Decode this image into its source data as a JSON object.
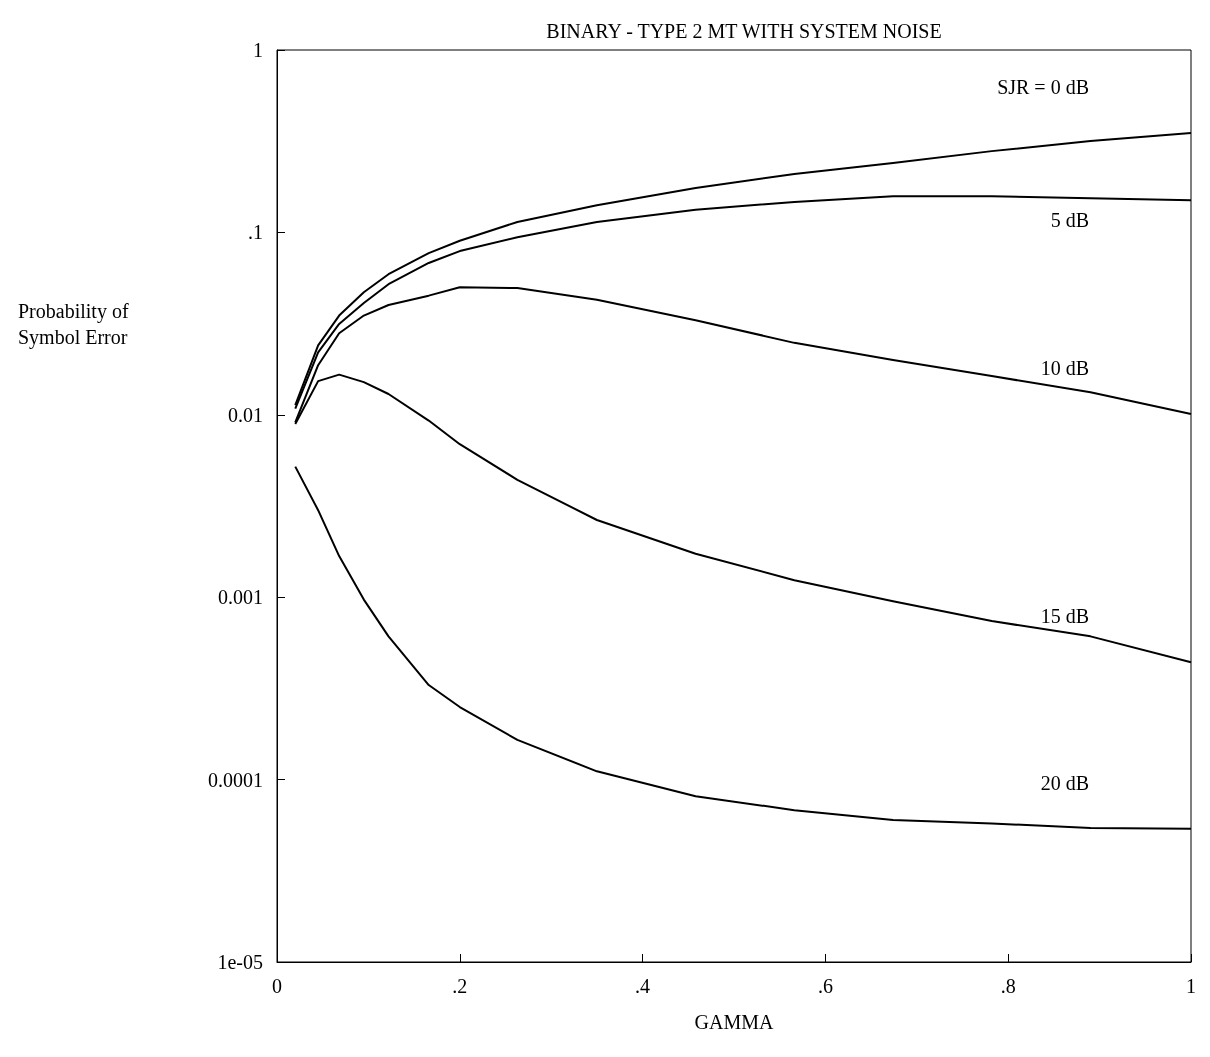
{
  "chart_data": {
    "type": "line",
    "title": "BINARY - TYPE 2 MT WITH SYSTEM NOISE",
    "xlabel": "GAMMA",
    "ylabel": "Probability of Symbol Error",
    "log": "y",
    "grid": false,
    "legend": false,
    "marker": "none",
    "line_style": "solid",
    "xlim": [
      0,
      1
    ],
    "xticks": [
      0,
      {
        "value": 0.2,
        "label": ".2"
      },
      {
        "value": 0.4,
        "label": ".4"
      },
      {
        "value": 0.6,
        "label": ".6"
      },
      {
        "value": 0.8,
        "label": ".8"
      },
      1
    ],
    "ylim": [
      1e-05,
      1
    ],
    "yticks": [
      {
        "value": 1e-05,
        "label": "1e-05"
      },
      0.0001,
      0.001,
      0.01,
      {
        "value": 0.1,
        "label": ".1"
      },
      1
    ],
    "x": [
      0.02,
      0.045,
      0.068,
      0.095,
      0.122,
      0.166,
      0.2,
      0.263,
      0.35,
      0.458,
      0.566,
      0.674,
      0.782,
      0.89,
      1
    ],
    "series": [
      {
        "name": "SJR = 0 dB",
        "color": "#000000",
        "values": [
          0.0113,
          0.024,
          0.035,
          0.047,
          0.059,
          0.077,
          0.09,
          0.114,
          0.141,
          0.175,
          0.209,
          0.24,
          0.279,
          0.317,
          0.351
        ]
      },
      {
        "name": "5 dB",
        "color": "#000000",
        "values": [
          0.0108,
          0.022,
          0.0315,
          0.041,
          0.052,
          0.068,
          0.079,
          0.094,
          0.114,
          0.133,
          0.147,
          0.158,
          0.158,
          0.154,
          0.15
        ]
      },
      {
        "name": "10 dB",
        "color": "#000000",
        "values": [
          0.0091,
          0.0187,
          0.028,
          0.035,
          0.04,
          0.045,
          0.05,
          0.0495,
          0.0427,
          0.033,
          0.0248,
          0.02,
          0.0163,
          0.0133,
          0.0101
        ]
      },
      {
        "name": "15 dB",
        "color": "#000000",
        "values": [
          0.0089,
          0.0153,
          0.0166,
          0.0151,
          0.013,
          0.0093,
          0.0069,
          0.0044,
          0.00265,
          0.00173,
          0.00124,
          0.00095,
          0.00074,
          0.00061,
          0.00044
        ]
      },
      {
        "name": "20 dB",
        "color": "#000000",
        "values": [
          0.0052,
          0.003,
          0.00168,
          0.00097,
          0.00061,
          0.00033,
          0.00025,
          0.000165,
          0.000111,
          8.1e-05,
          6.8e-05,
          6e-05,
          5.75e-05,
          5.43e-05,
          5.37e-05
        ]
      }
    ]
  }
}
